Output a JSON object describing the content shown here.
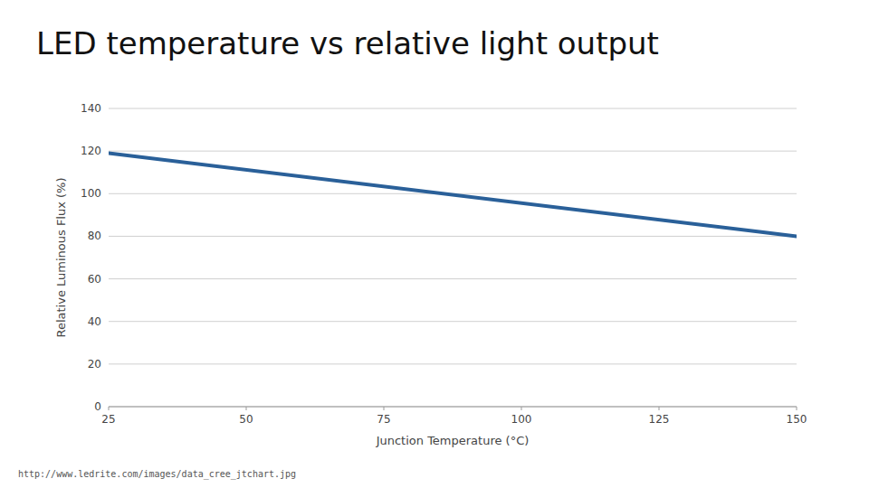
{
  "chart_data": {
    "type": "line",
    "title": "LED temperature vs relative light output",
    "x_label": "Junction Temperature (°C)",
    "y_label": "Relative Luminous Flux (%)",
    "footnote": "http://www.ledrite.com/images/data_cree_jtchart.jpg",
    "x": [
      25,
      150
    ],
    "values": [
      119,
      80
    ],
    "color": "#2a6099",
    "xlim": [
      25,
      150
    ],
    "ylim": [
      0,
      140
    ],
    "xticks": [
      25,
      50,
      75,
      100,
      125,
      150
    ],
    "yticks": [
      0,
      20,
      40,
      60,
      80,
      100,
      120,
      140
    ],
    "grid": "y"
  }
}
